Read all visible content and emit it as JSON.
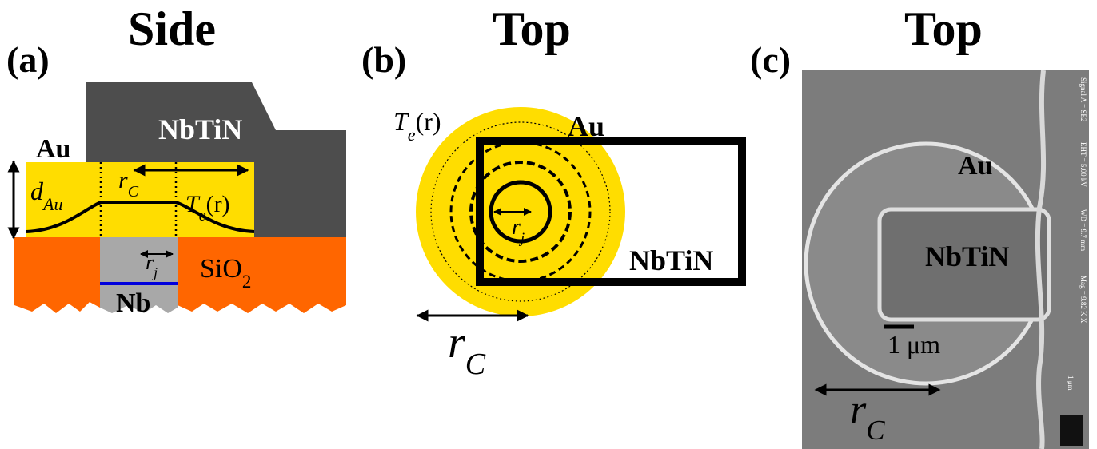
{
  "panels": [
    {
      "label": "(a)",
      "title": "Side",
      "annotations": [
        {
          "text": "Au"
        },
        {
          "text": "NbTiN"
        },
        {
          "text": "d",
          "sub": "Au"
        },
        {
          "text": "r",
          "sub": "C"
        },
        {
          "text": "T",
          "sub": "e",
          "after": "(r)"
        },
        {
          "text": "r",
          "sub": "j"
        },
        {
          "text": "SiO",
          "sub": "2"
        },
        {
          "text": "Nb"
        }
      ]
    },
    {
      "label": "(b)",
      "title": "Top",
      "annotations": [
        {
          "text": "Au"
        },
        {
          "text": "T",
          "sub": "e",
          "after": "(r)"
        },
        {
          "text": "NbTiN"
        },
        {
          "text": "r",
          "sub": "j"
        },
        {
          "text": "r",
          "sub": "C"
        }
      ]
    },
    {
      "label": "(c)",
      "title": "Top",
      "annotations": [
        {
          "text": "Au"
        },
        {
          "text": "NbTiN"
        },
        {
          "text": "1 μm"
        },
        {
          "text": "r",
          "sub": "C"
        },
        {
          "text": "Signal A = SE2"
        },
        {
          "text": "EHT = 5.00 kV"
        },
        {
          "text": "WD = 9.7 mm"
        },
        {
          "text": "Mag = 9.82 K X"
        },
        {
          "text": "1 μm"
        }
      ]
    }
  ]
}
